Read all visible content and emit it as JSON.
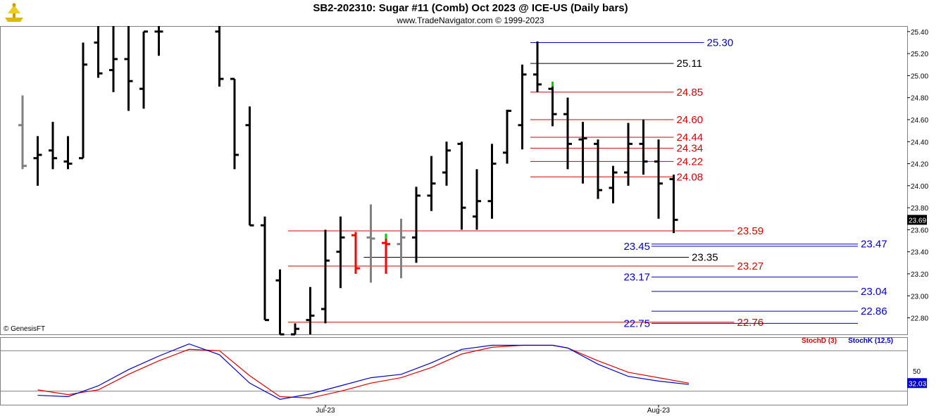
{
  "header": {
    "title": "SB2-202310:  Sugar #11 (Comb) Oct 2023 @ ICE-US  (Daily bars)",
    "subtitle": "www.TradeNavigator.com © 1999-2023",
    "credit": "© GenesisFT"
  },
  "colors": {
    "bar_up": "#000000",
    "bar_gray": "#808080",
    "bar_red": "#ff0000",
    "bar_green": "#00cc00",
    "level_red": "#d40000",
    "level_blue": "#0000cc",
    "level_black": "#000000",
    "stoch_d": "#dd0000",
    "stoch_k": "#0000cc",
    "last_price_box": "#000000",
    "stoch_box": "#0000cc"
  },
  "chart_data": [
    {
      "type": "bar",
      "subtype": "ohlc",
      "ylim": [
        22.65,
        25.45
      ],
      "y_ticks": [
        "25.40",
        "25.20",
        "25.00",
        "24.80",
        "24.60",
        "24.40",
        "24.20",
        "24.00",
        "23.80",
        "23.60",
        "23.40",
        "23.20",
        "23.00",
        "22.80"
      ],
      "x_labels": [
        {
          "label": "Jul-23",
          "index": 20
        },
        {
          "label": "Aug-23",
          "index": 42
        }
      ],
      "last_price_label": "23.69",
      "bars": [
        {
          "i": 0,
          "o": 24.55,
          "h": 24.82,
          "l": 24.15,
          "c": 24.18,
          "col": "gray"
        },
        {
          "i": 1,
          "o": 24.25,
          "h": 24.45,
          "l": 24.0,
          "c": 24.28,
          "col": "black"
        },
        {
          "i": 2,
          "o": 24.32,
          "h": 24.58,
          "l": 24.15,
          "c": 24.25,
          "col": "black"
        },
        {
          "i": 3,
          "o": 24.22,
          "h": 24.45,
          "l": 24.15,
          "c": 24.2,
          "col": "black"
        },
        {
          "i": 4,
          "o": 24.25,
          "h": 25.3,
          "l": 24.25,
          "c": 25.1,
          "col": "black"
        },
        {
          "i": 5,
          "o": 25.3,
          "h": 25.45,
          "l": 24.98,
          "c": 25.02,
          "col": "black"
        },
        {
          "i": 6,
          "o": 25.05,
          "h": 25.45,
          "l": 24.85,
          "c": 25.15,
          "col": "black"
        },
        {
          "i": 7,
          "o": 25.15,
          "h": 25.45,
          "l": 24.68,
          "c": 24.95,
          "col": "black"
        },
        {
          "i": 8,
          "o": 24.88,
          "h": 25.4,
          "l": 24.7,
          "c": 25.4,
          "col": "black"
        },
        {
          "i": 9,
          "o": 25.4,
          "h": 25.45,
          "l": 25.18,
          "c": 25.4,
          "col": "black"
        },
        {
          "i": 13,
          "o": 25.4,
          "h": 25.45,
          "l": 24.9,
          "c": 24.97,
          "col": "black"
        },
        {
          "i": 14,
          "o": 24.97,
          "h": 24.97,
          "l": 24.15,
          "c": 24.28,
          "col": "black"
        },
        {
          "i": 15,
          "o": 24.55,
          "h": 24.72,
          "l": 23.64,
          "c": 23.64,
          "col": "black"
        },
        {
          "i": 16,
          "o": 23.64,
          "h": 23.72,
          "l": 22.78,
          "c": 22.78,
          "col": "black"
        },
        {
          "i": 17,
          "o": 23.14,
          "h": 23.24,
          "l": 22.65,
          "c": 22.65,
          "col": "black"
        },
        {
          "i": 18,
          "o": 22.65,
          "h": 22.75,
          "l": 22.65,
          "c": 22.7,
          "col": "black"
        },
        {
          "i": 19,
          "o": 22.78,
          "h": 23.08,
          "l": 22.65,
          "c": 22.82,
          "col": "black"
        },
        {
          "i": 20,
          "o": 22.88,
          "h": 23.6,
          "l": 22.75,
          "c": 23.32,
          "col": "black"
        },
        {
          "i": 21,
          "o": 23.4,
          "h": 23.72,
          "l": 23.07,
          "c": 23.53,
          "col": "black"
        },
        {
          "i": 22,
          "o": 23.55,
          "h": 23.58,
          "l": 23.2,
          "c": 23.25,
          "col": "red"
        },
        {
          "i": 23,
          "o": 23.53,
          "h": 23.83,
          "l": 23.12,
          "c": 23.52,
          "col": "gray"
        },
        {
          "i": 24,
          "o": 23.48,
          "h": 23.52,
          "l": 23.2,
          "c": 23.47,
          "col": "red",
          "tick": "green"
        },
        {
          "i": 25,
          "o": 23.47,
          "h": 23.7,
          "l": 23.16,
          "c": 23.53,
          "col": "gray"
        },
        {
          "i": 26,
          "o": 23.53,
          "h": 23.99,
          "l": 23.3,
          "c": 23.91,
          "col": "black"
        },
        {
          "i": 27,
          "o": 23.91,
          "h": 24.27,
          "l": 23.77,
          "c": 24.02,
          "col": "black"
        },
        {
          "i": 28,
          "o": 24.12,
          "h": 24.4,
          "l": 24.0,
          "c": 24.32,
          "col": "black"
        },
        {
          "i": 29,
          "o": 24.38,
          "h": 24.4,
          "l": 23.6,
          "c": 23.8,
          "col": "black"
        },
        {
          "i": 30,
          "o": 23.72,
          "h": 24.15,
          "l": 23.6,
          "c": 23.86,
          "col": "black"
        },
        {
          "i": 31,
          "o": 23.86,
          "h": 24.38,
          "l": 23.7,
          "c": 24.2,
          "col": "black"
        },
        {
          "i": 32,
          "o": 24.3,
          "h": 24.69,
          "l": 24.2,
          "c": 24.68,
          "col": "black"
        },
        {
          "i": 33,
          "o": 24.55,
          "h": 25.1,
          "l": 24.33,
          "c": 25.01,
          "col": "black"
        },
        {
          "i": 34,
          "o": 25.01,
          "h": 25.31,
          "l": 24.85,
          "c": 24.92,
          "col": "black"
        },
        {
          "i": 35,
          "o": 24.88,
          "h": 24.9,
          "l": 24.54,
          "c": 24.65,
          "col": "black",
          "tick": "green"
        },
        {
          "i": 36,
          "o": 24.65,
          "h": 24.8,
          "l": 24.15,
          "c": 24.38,
          "col": "black"
        },
        {
          "i": 37,
          "o": 24.42,
          "h": 24.58,
          "l": 24.02,
          "c": 24.43,
          "col": "black"
        },
        {
          "i": 38,
          "o": 24.38,
          "h": 24.42,
          "l": 23.88,
          "c": 23.96,
          "col": "black"
        },
        {
          "i": 39,
          "o": 23.98,
          "h": 24.18,
          "l": 23.84,
          "c": 24.12,
          "col": "black"
        },
        {
          "i": 40,
          "o": 24.12,
          "h": 24.57,
          "l": 24.0,
          "c": 24.38,
          "col": "black"
        },
        {
          "i": 41,
          "o": 24.38,
          "h": 24.6,
          "l": 24.1,
          "c": 24.22,
          "col": "black"
        },
        {
          "i": 42,
          "o": 24.22,
          "h": 24.42,
          "l": 23.7,
          "c": 24.02,
          "col": "black"
        },
        {
          "i": 43,
          "o": 24.06,
          "h": 24.1,
          "l": 23.57,
          "c": 23.69,
          "col": "black"
        }
      ],
      "levels": [
        {
          "value": 25.3,
          "label": "25.30",
          "color": "blue",
          "from": 34,
          "to": 45,
          "label_side": "right"
        },
        {
          "value": 25.11,
          "label": "25.11",
          "color": "black",
          "from": 34,
          "to": 43,
          "label_side": "right"
        },
        {
          "value": 24.85,
          "label": "24.85",
          "color": "red",
          "from": 34,
          "to": 43,
          "label_side": "right"
        },
        {
          "value": 24.6,
          "label": "24.60",
          "color": "red",
          "from": 34,
          "to": 43,
          "label_side": "right"
        },
        {
          "value": 24.44,
          "label": "24.44",
          "color": "red",
          "from": 34,
          "to": 43,
          "label_side": "right"
        },
        {
          "value": 24.34,
          "label": "24.34",
          "color": "red",
          "from": 34,
          "to": 43,
          "label_side": "right"
        },
        {
          "value": 24.22,
          "label": "24.22",
          "color": "red",
          "from": 34,
          "to": 43,
          "label_side": "right"
        },
        {
          "value": 24.08,
          "label": "24.08",
          "color": "red",
          "from": 34,
          "to": 43,
          "label_side": "right"
        },
        {
          "value": 23.59,
          "label": "23.59",
          "color": "red",
          "from": 18,
          "to": 47,
          "label_side": "right"
        },
        {
          "value": 23.47,
          "label": "23.47",
          "color": "blue",
          "from": 42,
          "to": 56,
          "label_side": "right"
        },
        {
          "value": 23.45,
          "label": "23.45",
          "color": "blue",
          "from": 42,
          "to": 56,
          "label_side": "left"
        },
        {
          "value": 23.35,
          "label": "23.35",
          "color": "black",
          "from": 23,
          "to": 44,
          "label_side": "right"
        },
        {
          "value": 23.27,
          "label": "23.27",
          "color": "red",
          "from": 18,
          "to": 47,
          "label_side": "right"
        },
        {
          "value": 23.17,
          "label": "23.17",
          "color": "blue",
          "from": 42,
          "to": 56,
          "label_side": "left"
        },
        {
          "value": 23.04,
          "label": "23.04",
          "color": "blue",
          "from": 42,
          "to": 56,
          "label_side": "right"
        },
        {
          "value": 22.86,
          "label": "22.86",
          "color": "blue",
          "from": 42,
          "to": 56,
          "label_side": "right"
        },
        {
          "value": 22.76,
          "label": "22.76",
          "color": "red",
          "from": 18,
          "to": 47,
          "label_side": "right"
        },
        {
          "value": 22.75,
          "label": "22.75",
          "color": "blue",
          "from": 42,
          "to": 56,
          "label_side": "left"
        }
      ]
    },
    {
      "type": "line",
      "title": "",
      "ylim": [
        0,
        100
      ],
      "y_ticks": [
        "50"
      ],
      "guide_lines": [
        80,
        20
      ],
      "last_value_label": "32.03",
      "series": [
        {
          "name": "StochD (3)",
          "color": "#dd0000",
          "x": [
            1,
            3,
            5,
            7,
            9,
            11,
            13,
            15,
            17,
            19,
            21,
            23,
            25,
            27,
            29,
            31,
            33,
            35,
            36,
            38,
            40,
            42,
            44
          ],
          "y": [
            22,
            15,
            22,
            45,
            65,
            82,
            80,
            43,
            12,
            10,
            20,
            32,
            40,
            55,
            75,
            85,
            88,
            88,
            84,
            65,
            48,
            40,
            32
          ]
        },
        {
          "name": "StochK (12,5)",
          "color": "#0000cc",
          "x": [
            1,
            3,
            5,
            7,
            9,
            11,
            13,
            15,
            17,
            19,
            21,
            23,
            25,
            27,
            29,
            31,
            33,
            35,
            36,
            38,
            40,
            42,
            44
          ],
          "y": [
            14,
            12,
            28,
            52,
            72,
            90,
            74,
            32,
            8,
            16,
            28,
            40,
            45,
            62,
            82,
            88,
            88,
            88,
            84,
            60,
            42,
            35,
            30
          ]
        }
      ]
    }
  ]
}
